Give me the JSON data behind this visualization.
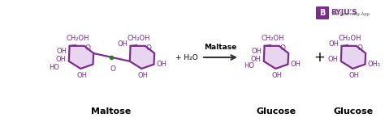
{
  "bg_color": "#ffffff",
  "ring_color": "#7b2d8b",
  "ring_fill": "#e8d5f0",
  "arrow_color": "#333333",
  "maltose_label": "Maltose",
  "glucose_label": "Glucose",
  "enzyme_label": "Maltase",
  "water_label": "+ H₂O",
  "byju_box_color": "#7b2d8b",
  "byju_text": "BYJU'S",
  "byju_sub": "The Learning App",
  "ring_lw": 1.6,
  "text_fs": 6.0,
  "label_fs": 8.0
}
